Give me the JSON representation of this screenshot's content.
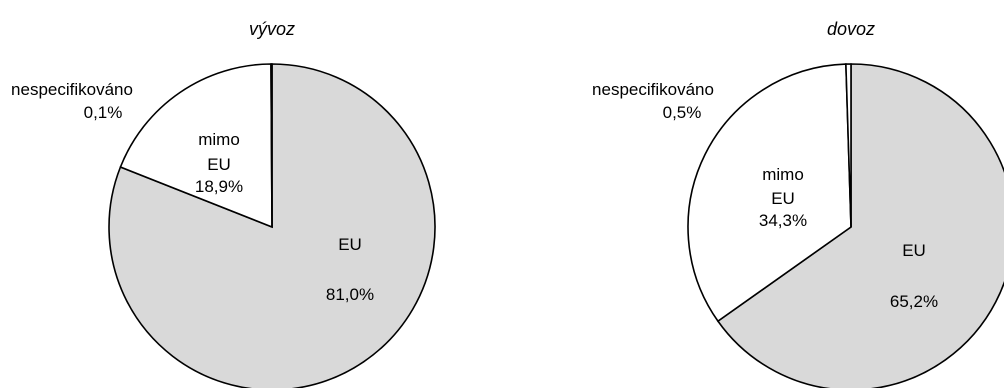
{
  "chart_data": [
    {
      "type": "pie",
      "title": "vývoz",
      "slices": [
        {
          "label": "EU",
          "value": 81.0,
          "value_label": "81,0%",
          "color": "#d9d9d9"
        },
        {
          "label_lines": [
            "mimo",
            "EU"
          ],
          "value": 18.9,
          "value_label": "18,9%",
          "color": "#ffffff"
        },
        {
          "label": "nespecifikováno",
          "value": 0.1,
          "value_label": "0,1%",
          "color": "#ffffff"
        }
      ]
    },
    {
      "type": "pie",
      "title": "dovoz",
      "slices": [
        {
          "label": "EU",
          "value": 65.2,
          "value_label": "65,2%",
          "color": "#d9d9d9"
        },
        {
          "label_lines": [
            "mimo",
            "EU"
          ],
          "value": 34.3,
          "value_label": "34,3%",
          "color": "#ffffff"
        },
        {
          "label": "nespecifikováno",
          "value": 0.5,
          "value_label": "0,5%",
          "color": "#ffffff"
        }
      ]
    }
  ]
}
